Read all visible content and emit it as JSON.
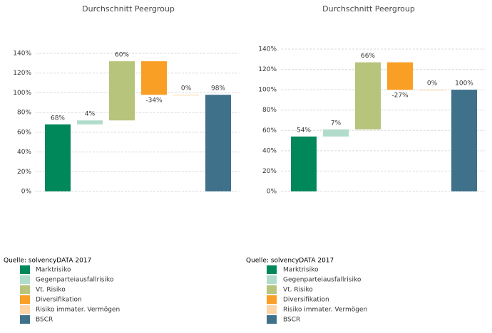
{
  "chart_data": [
    {
      "type": "waterfall",
      "title": "Durchschnitt Peergroup",
      "categories": [
        "Marktrisiko",
        "Gegenparteiausfallrisiko",
        "Vt. Risiko",
        "Diversifikation",
        "Risiko immater. Vermögen",
        "BSCR"
      ],
      "values": [
        68,
        4,
        60,
        -34,
        0,
        98
      ],
      "value_labels": [
        "68%",
        "4%",
        "60%",
        "-34%",
        "0%",
        "98%"
      ],
      "colors": [
        "#00875a",
        "#b1dccb",
        "#b7c47c",
        "#f99f25",
        "#fdd4a6",
        "#3f718b"
      ],
      "ylim": [
        0,
        140
      ],
      "yticks": [
        {
          "value": 0,
          "label": "0%"
        },
        {
          "value": 20,
          "label": "20%"
        },
        {
          "value": 40,
          "label": "40%"
        },
        {
          "value": 60,
          "label": "60%"
        },
        {
          "value": 80,
          "label": "80%"
        },
        {
          "value": 100,
          "label": "100%"
        },
        {
          "value": 120,
          "label": "120%"
        },
        {
          "value": 140,
          "label": "140%"
        }
      ],
      "grid": true,
      "source": "Quelle: solvencyDATA 2017"
    },
    {
      "type": "waterfall",
      "title": "Durchschnitt Peergroup",
      "categories": [
        "Marktrisiko",
        "Gegenparteiausfallrisiko",
        "Vt. Risiko",
        "Diversifikation",
        "Risiko immater. Vermögen",
        "BSCR"
      ],
      "values": [
        54,
        7,
        66,
        -27,
        0,
        100
      ],
      "value_labels": [
        "54%",
        "7%",
        "66%",
        "-27%",
        "0%",
        "100%"
      ],
      "colors": [
        "#00875a",
        "#b1dccb",
        "#b7c47c",
        "#f99f25",
        "#fdd4a6",
        "#3f718b"
      ],
      "ylim": [
        0,
        140
      ],
      "yticks": [
        {
          "value": 0,
          "label": "0%"
        },
        {
          "value": 20,
          "label": "20%"
        },
        {
          "value": 40,
          "label": "40%"
        },
        {
          "value": 60,
          "label": "60%"
        },
        {
          "value": 80,
          "label": "80%"
        },
        {
          "value": 100,
          "label": "100%"
        },
        {
          "value": 120,
          "label": "120%"
        },
        {
          "value": 140,
          "label": "140%"
        }
      ],
      "grid": true,
      "source": "Quelle: solvencyDATA 2017"
    }
  ]
}
